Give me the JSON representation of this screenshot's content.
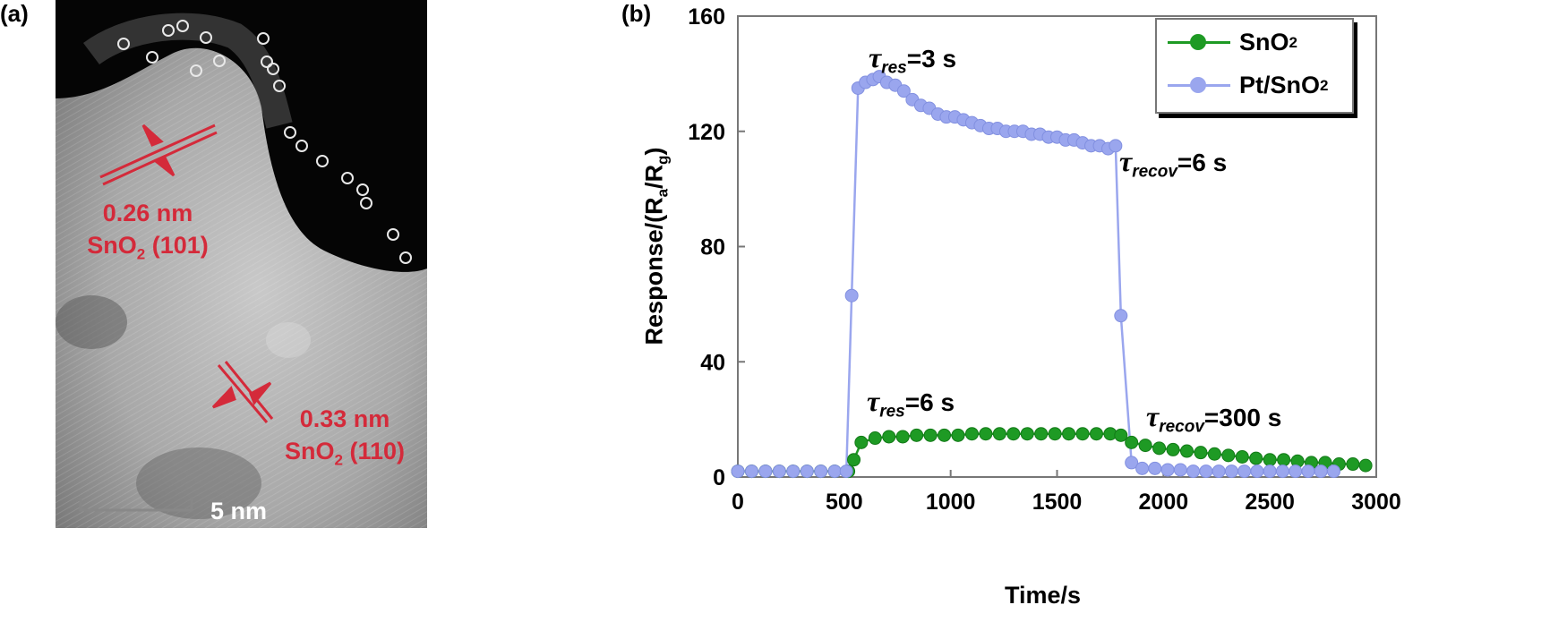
{
  "panel_a": {
    "label": "(a)",
    "annotations": [
      {
        "spacing": "0.26 nm",
        "plane_pre": "SnO",
        "plane_sub": "2",
        "plane_post": " (101)"
      },
      {
        "spacing": "0.33 nm",
        "plane_pre": "SnO",
        "plane_sub": "2",
        "plane_post": " (110)"
      }
    ],
    "scale_bar": "5 nm"
  },
  "panel_b": {
    "label": "(b)"
  },
  "chart_data": {
    "type": "line",
    "xlabel": "Time/s",
    "ylabel": {
      "pre": "Response/(R",
      "sub1": "a",
      "mid": "/R",
      "sub2": "g",
      "post": ")"
    },
    "xlim": [
      0,
      3000
    ],
    "ylim": [
      0,
      160
    ],
    "xticks": [
      "0",
      "500",
      "1000",
      "1500",
      "2000",
      "2500",
      "3000"
    ],
    "yticks": [
      "0",
      "40",
      "80",
      "120",
      "160"
    ],
    "grid": false,
    "legend_position": "top-right",
    "colors": {
      "SnO2": "#1e9a24",
      "PtSnO2": "#9aa6ee"
    },
    "series": [
      {
        "name": "SnO2",
        "name_pre": "SnO",
        "name_sub": "2",
        "x": [
          0,
          65,
          130,
          195,
          260,
          325,
          390,
          455,
          520,
          545,
          580,
          645,
          710,
          775,
          840,
          905,
          970,
          1035,
          1100,
          1165,
          1230,
          1295,
          1360,
          1425,
          1490,
          1555,
          1620,
          1685,
          1750,
          1800,
          1850,
          1915,
          1980,
          2045,
          2110,
          2175,
          2240,
          2305,
          2370,
          2435,
          2500,
          2565,
          2630,
          2695,
          2760,
          2825,
          2890,
          2950
        ],
        "y": [
          2,
          2,
          2,
          2,
          2,
          2,
          2,
          2,
          2,
          6,
          12,
          13.5,
          14,
          14,
          14.5,
          14.5,
          14.5,
          14.5,
          15,
          15,
          15,
          15,
          15,
          15,
          15,
          15,
          15,
          15,
          15,
          14.5,
          12,
          11,
          10,
          9.5,
          9,
          8.5,
          8,
          7.5,
          7,
          6.5,
          6,
          6,
          5.5,
          5,
          5,
          4.5,
          4.5,
          4
        ]
      },
      {
        "name": "Pt/SnO2",
        "name_pre": "Pt/SnO",
        "name_sub": "2",
        "x": [
          0,
          65,
          130,
          195,
          260,
          325,
          390,
          455,
          510,
          535,
          565,
          600,
          635,
          665,
          700,
          740,
          780,
          820,
          860,
          900,
          940,
          980,
          1020,
          1060,
          1100,
          1140,
          1180,
          1220,
          1260,
          1300,
          1340,
          1380,
          1420,
          1460,
          1500,
          1540,
          1580,
          1620,
          1660,
          1700,
          1740,
          1775,
          1800,
          1850,
          1900,
          1960,
          2020,
          2080,
          2140,
          2200,
          2260,
          2320,
          2380,
          2440,
          2500,
          2560,
          2620,
          2680,
          2740,
          2800
        ],
        "y": [
          2,
          2,
          2,
          2,
          2,
          2,
          2,
          2,
          2,
          63,
          135,
          137,
          138,
          139,
          137,
          136,
          134,
          131,
          129,
          128,
          126,
          125,
          125,
          124,
          123,
          122,
          121,
          121,
          120,
          120,
          120,
          119,
          119,
          118,
          118,
          117,
          117,
          116,
          115,
          115,
          114,
          115,
          56,
          5,
          3,
          3,
          2.5,
          2.5,
          2,
          2,
          2,
          2,
          2,
          2,
          2,
          2,
          2,
          2,
          2,
          2
        ]
      }
    ],
    "annotations": [
      {
        "tau": "τ",
        "sub": "res",
        "text": "=3 s"
      },
      {
        "tau": "τ",
        "sub": "recov",
        "text": "=6 s"
      },
      {
        "tau": "τ",
        "sub": "res",
        "text": "=6 s"
      },
      {
        "tau": "τ",
        "sub": "recov",
        "text": "=300 s"
      }
    ]
  }
}
